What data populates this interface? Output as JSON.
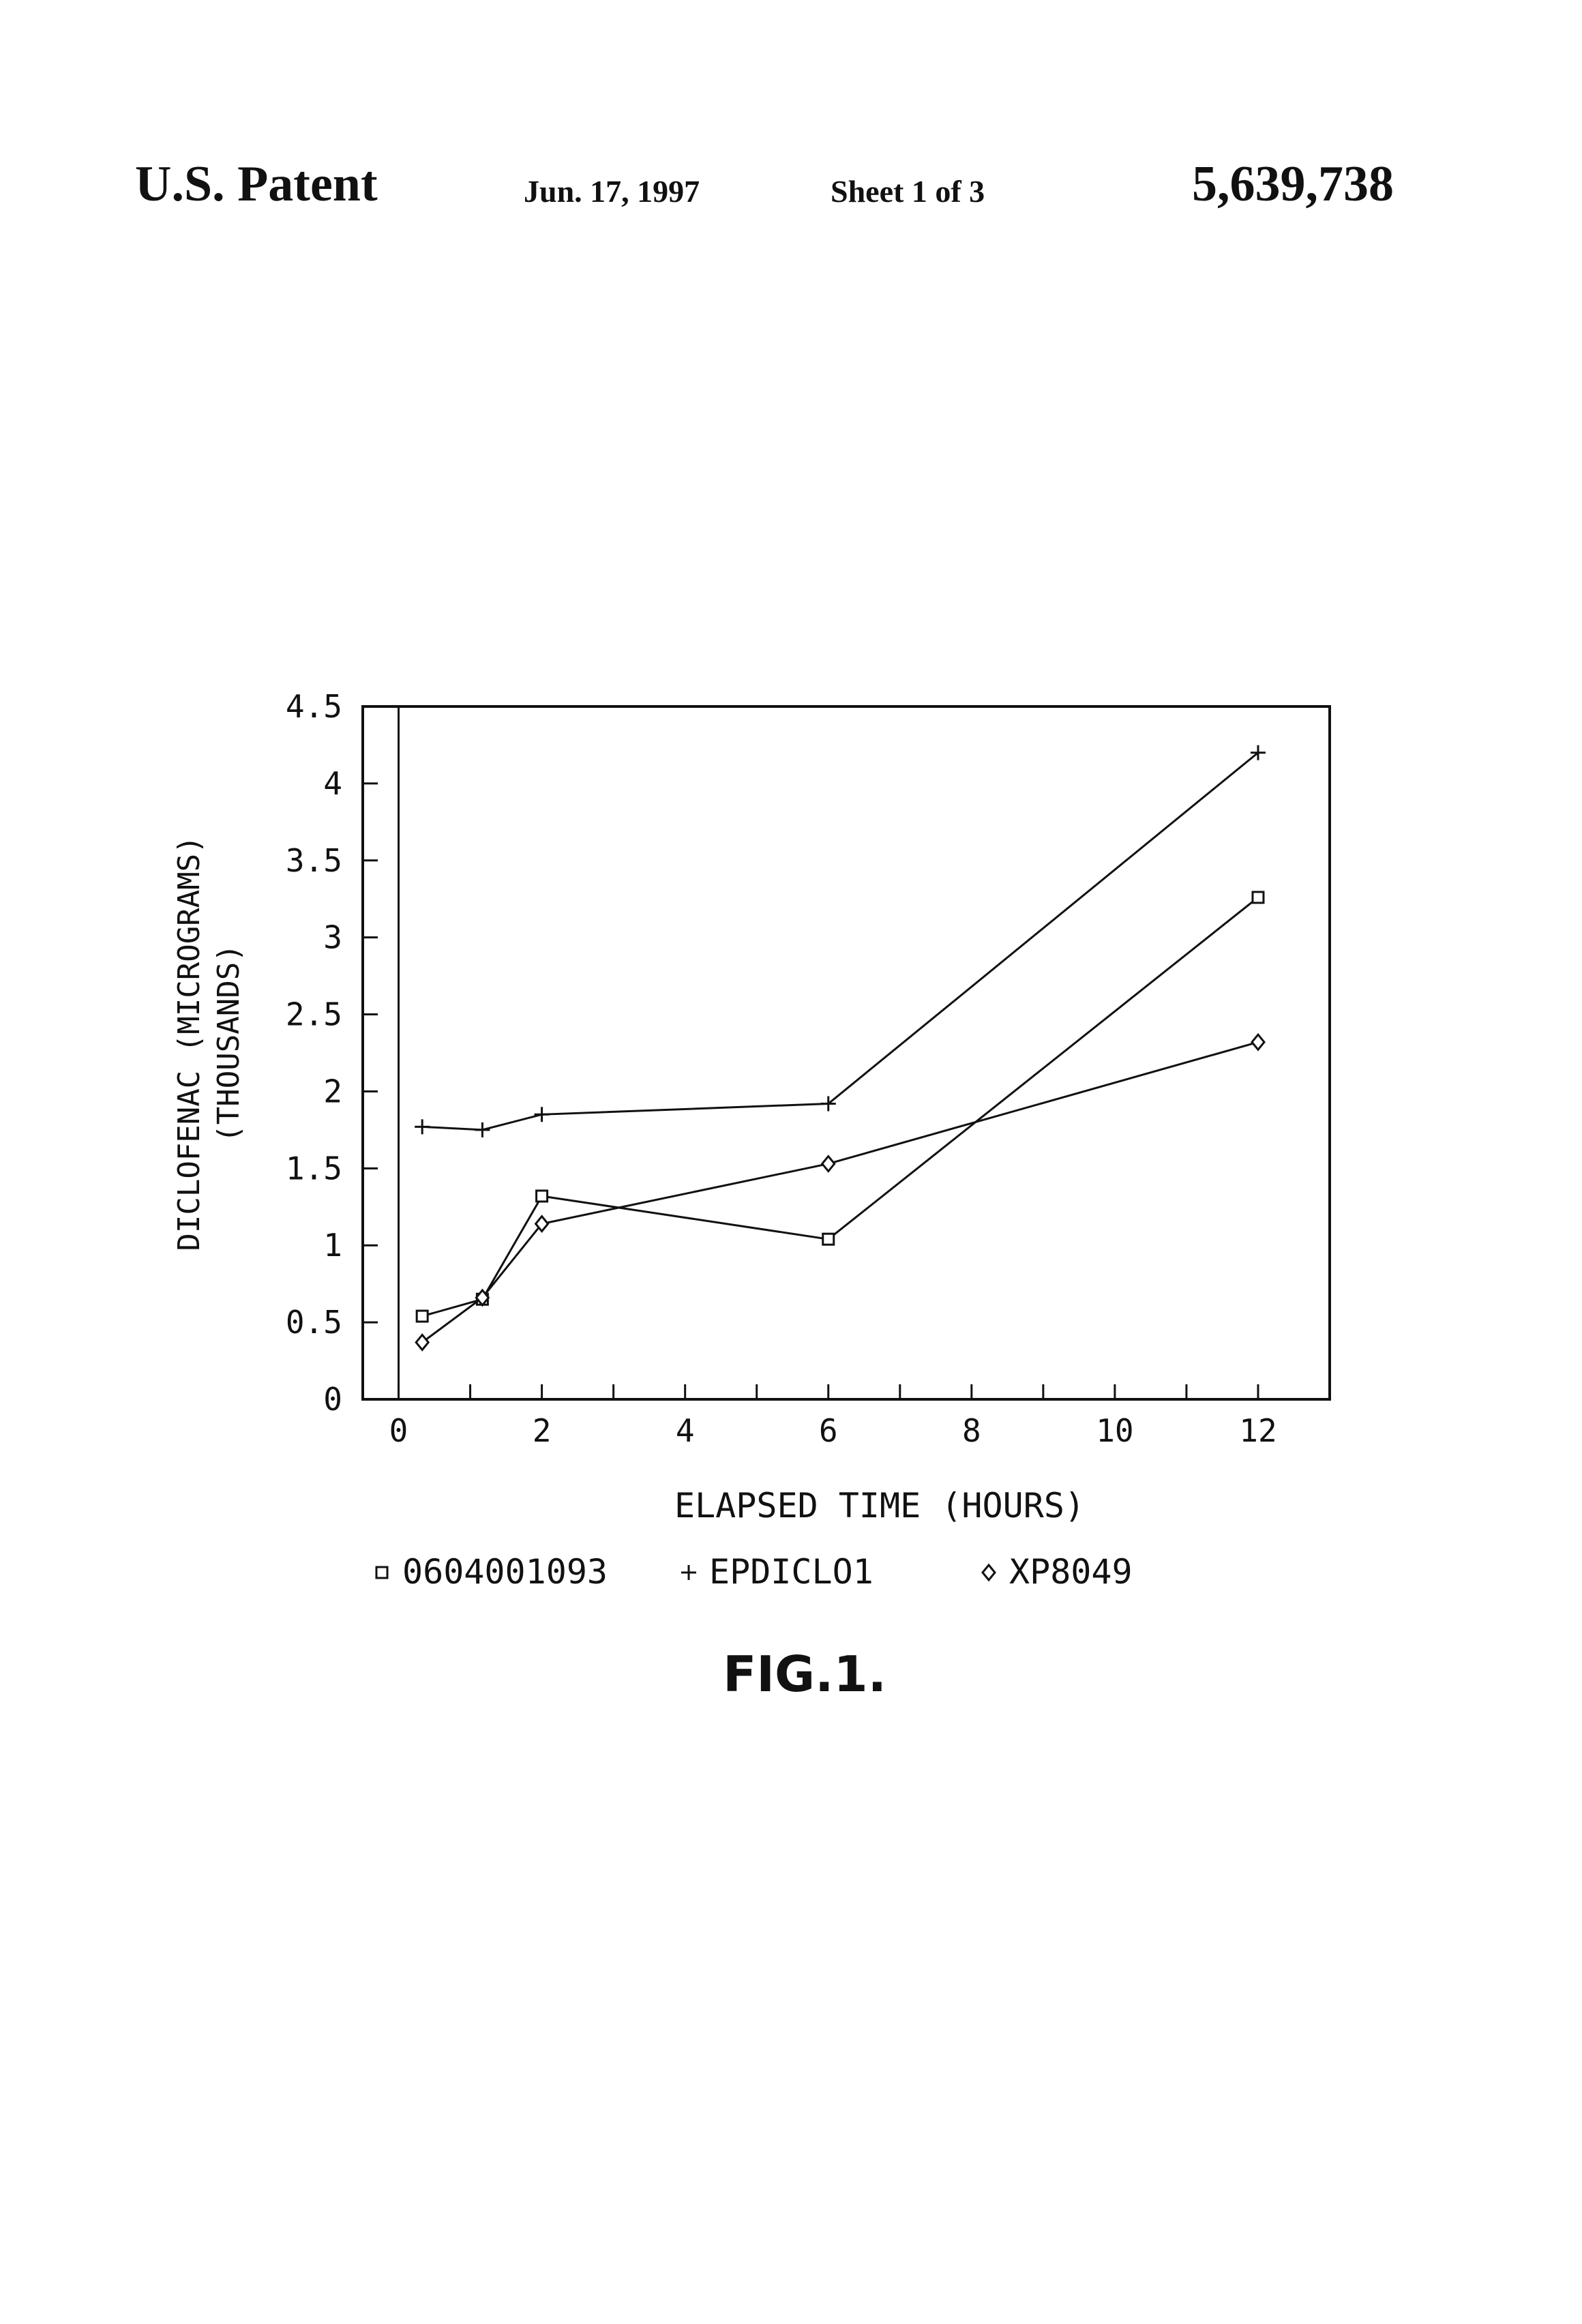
{
  "header": {
    "left": "U.S. Patent",
    "date": "Jun. 17, 1997",
    "sheet": "Sheet 1 of 3",
    "patent_number": "5,639,738"
  },
  "figure_label": "FIG.1.",
  "colors": {
    "ink": "#111111",
    "background": "#ffffff"
  },
  "chart_data": {
    "type": "line",
    "ylabel_line1": "DICLOFENAC (MICROGRAMS)",
    "ylabel_line2": "(THOUSANDS)",
    "xlabel": "ELAPSED TIME (HOURS)",
    "xlim": [
      -0.5,
      13
    ],
    "ylim": [
      0,
      4.5
    ],
    "x_ticks": [
      0,
      2,
      4,
      6,
      8,
      10,
      12
    ],
    "x_tick_labels": [
      "0",
      "2",
      "4",
      "6",
      "8",
      "10",
      "12"
    ],
    "y_ticks": [
      0,
      0.5,
      1,
      1.5,
      2,
      2.5,
      3,
      3.5,
      4,
      4.5
    ],
    "y_tick_labels": [
      "0",
      "0.5",
      "1",
      "1.5",
      "2",
      "2.5",
      "3",
      "3.5",
      "4",
      "4.5"
    ],
    "grid": false,
    "legend_position": "bottom",
    "series": [
      {
        "name": "0604001093",
        "marker": "square",
        "x": [
          0.33,
          1.17,
          2.0,
          6.0,
          12.0
        ],
        "y": [
          0.54,
          0.65,
          1.32,
          1.04,
          3.26
        ]
      },
      {
        "name": "EPDICLO1",
        "marker": "plus",
        "x": [
          0.33,
          1.17,
          2.0,
          6.0,
          12.0
        ],
        "y": [
          1.77,
          1.75,
          1.85,
          1.92,
          4.2
        ]
      },
      {
        "name": "XP8049",
        "marker": "diamond",
        "x": [
          0.33,
          1.17,
          2.0,
          6.0,
          12.0
        ],
        "y": [
          0.37,
          0.66,
          1.14,
          1.53,
          2.32
        ]
      }
    ]
  }
}
